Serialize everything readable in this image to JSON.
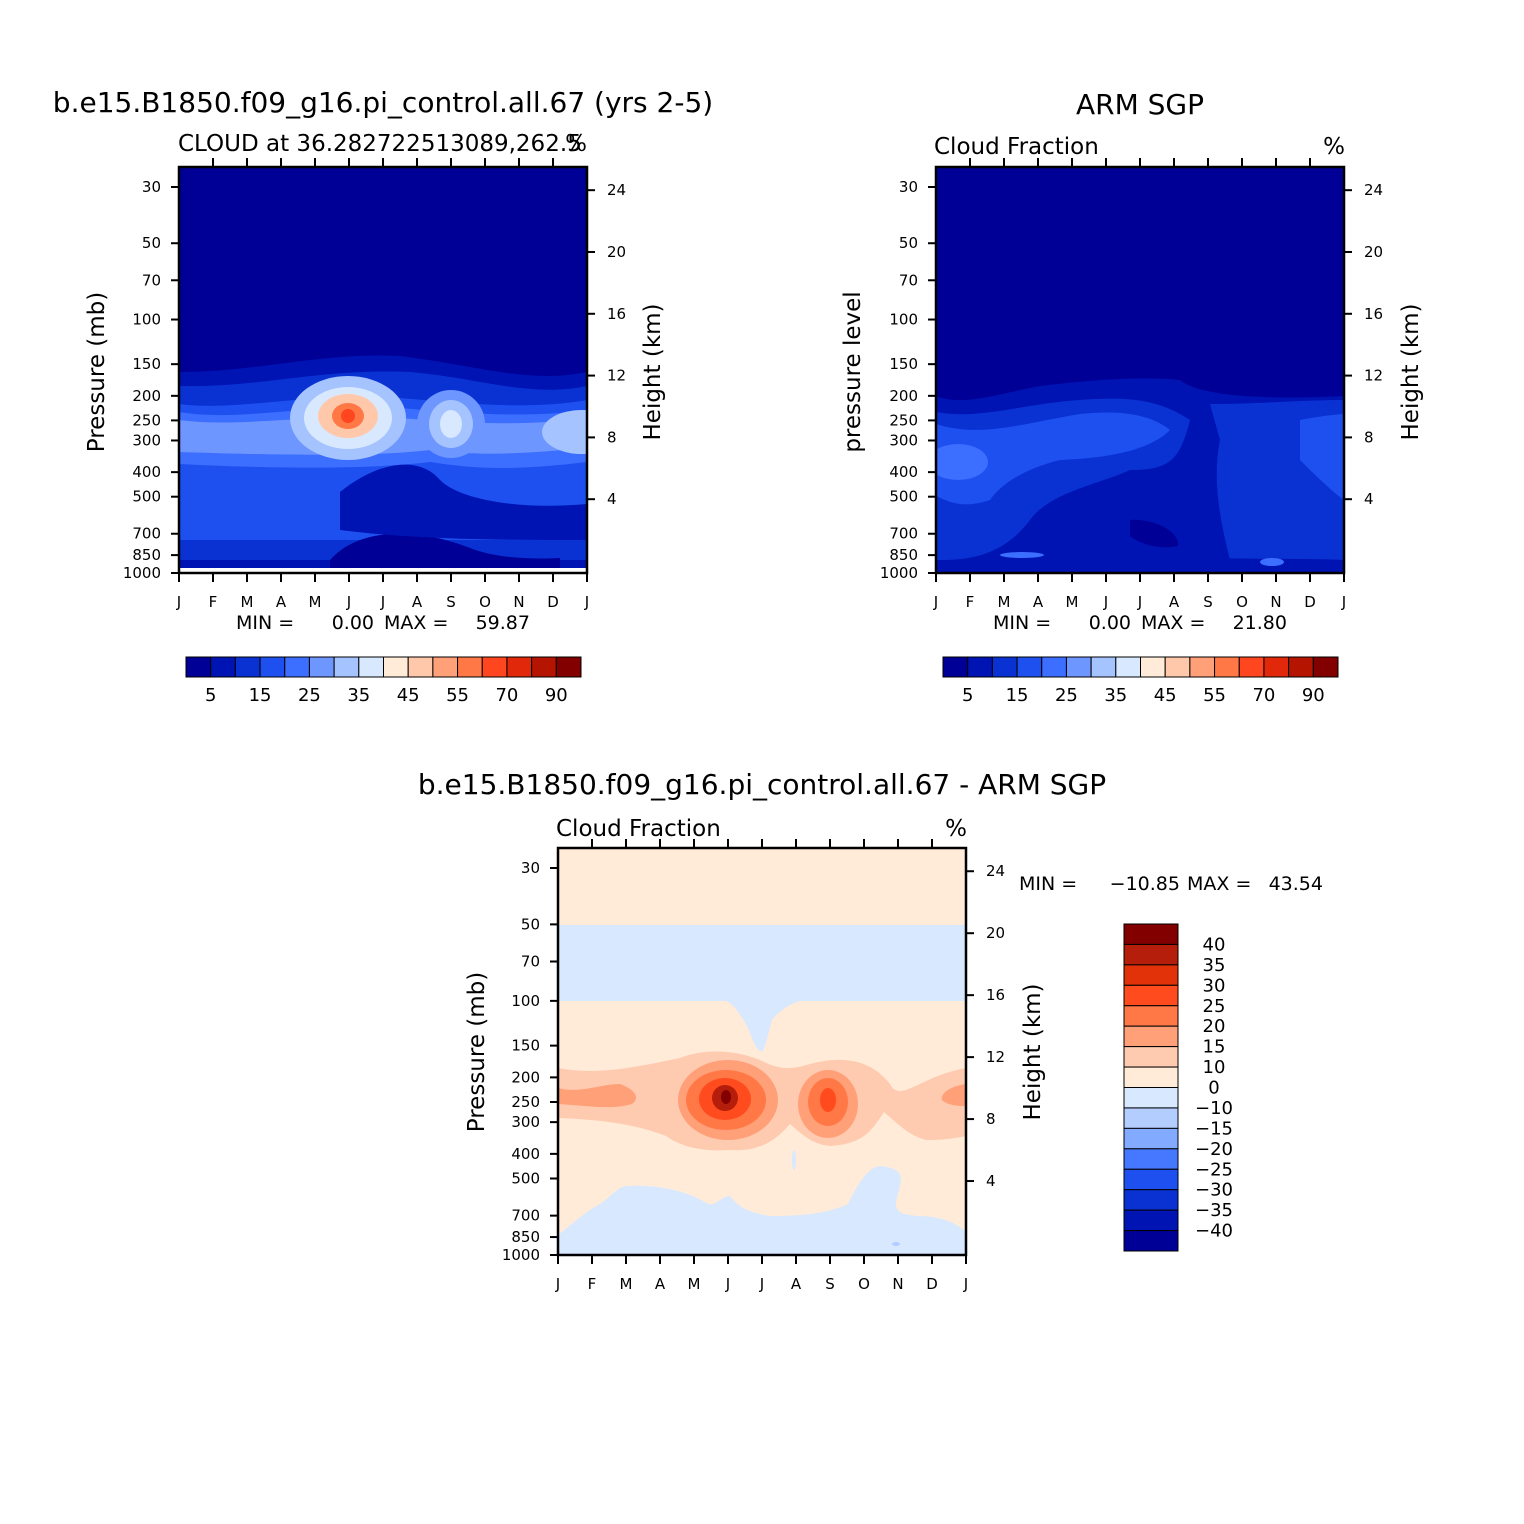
{
  "chart_data": [
    {
      "id": "p1",
      "type": "heatmap",
      "title": "b.e15.B1850.f09_g16.pi_control.all.67 (yrs 2-5)",
      "subtitle_left": "CLOUD at 36.282722513089,262.5",
      "subtitle_right": "%",
      "ylabel": "Pressure (mb)",
      "ylabel_right": "Height (km)",
      "xlabel": "",
      "x_ticks": [
        "J",
        "F",
        "M",
        "A",
        "M",
        "J",
        "J",
        "A",
        "S",
        "O",
        "N",
        "D",
        "J"
      ],
      "y_ticks": [
        "30",
        "50",
        "70",
        "100",
        "150",
        "200",
        "250",
        "300",
        "400",
        "500",
        "700",
        "850",
        "1000"
      ],
      "y_ticks_values": [
        30,
        50,
        70,
        100,
        150,
        200,
        250,
        300,
        400,
        500,
        700,
        850,
        1000
      ],
      "right_ticks": [
        "24",
        "20",
        "16",
        "12",
        "8",
        "4"
      ],
      "right_ticks_values": [
        24,
        20,
        16,
        12,
        8,
        4
      ],
      "stats": {
        "min_label": "MIN =",
        "min": "0.00",
        "max_label": "MAX =",
        "max": "59.87"
      },
      "colorbar_labels": [
        "5",
        "15",
        "25",
        "35",
        "45",
        "55",
        "70",
        "90"
      ],
      "features": [
        {
          "month": 5.0,
          "pressure": 250,
          "peak": 55
        },
        {
          "month": 7.7,
          "pressure": 260,
          "peak": 40
        }
      ]
    },
    {
      "id": "p2",
      "type": "heatmap",
      "title": "ARM SGP",
      "subtitle_left": "Cloud Fraction",
      "subtitle_right": "%",
      "ylabel": "pressure level",
      "ylabel_right": "Height (km)",
      "xlabel": "",
      "x_ticks": [
        "J",
        "F",
        "M",
        "A",
        "M",
        "J",
        "J",
        "A",
        "S",
        "O",
        "N",
        "D",
        "J"
      ],
      "y_ticks": [
        "30",
        "50",
        "70",
        "100",
        "150",
        "200",
        "250",
        "300",
        "400",
        "500",
        "700",
        "850",
        "1000"
      ],
      "y_ticks_values": [
        30,
        50,
        70,
        100,
        150,
        200,
        250,
        300,
        400,
        500,
        700,
        850,
        1000
      ],
      "right_ticks": [
        "24",
        "20",
        "16",
        "12",
        "8",
        "4"
      ],
      "right_ticks_values": [
        24,
        20,
        16,
        12,
        8,
        4
      ],
      "stats": {
        "min_label": "MIN =",
        "min": "0.00",
        "max_label": "MAX =",
        "max": "21.80"
      },
      "colorbar_labels": [
        "5",
        "15",
        "25",
        "35",
        "45",
        "55",
        "70",
        "90"
      ]
    },
    {
      "id": "p3",
      "type": "heatmap",
      "title": "b.e15.B1850.f09_g16.pi_control.all.67 - ARM SGP",
      "subtitle_left": "Cloud Fraction",
      "subtitle_right": "%",
      "ylabel": "Pressure (mb)",
      "ylabel_right": "Height (km)",
      "xlabel": "",
      "x_ticks": [
        "J",
        "F",
        "M",
        "A",
        "M",
        "J",
        "J",
        "A",
        "S",
        "O",
        "N",
        "D",
        "J"
      ],
      "y_ticks": [
        "30",
        "50",
        "70",
        "100",
        "150",
        "200",
        "250",
        "300",
        "400",
        "500",
        "700",
        "850",
        "1000"
      ],
      "y_ticks_values": [
        30,
        50,
        70,
        100,
        150,
        200,
        250,
        300,
        400,
        500,
        700,
        850,
        1000
      ],
      "right_ticks": [
        "24",
        "20",
        "16",
        "12",
        "8",
        "4"
      ],
      "right_ticks_values": [
        24,
        20,
        16,
        12,
        8,
        4
      ],
      "stats": {
        "min_label": "MIN =",
        "min": "−10.85",
        "max_label": "MAX =",
        "max": "43.54"
      },
      "colorbar_labels": [
        "40",
        "35",
        "30",
        "25",
        "20",
        "15",
        "10",
        "0",
        "−10",
        "−15",
        "−20",
        "−25",
        "−30",
        "−35",
        "−40"
      ],
      "features": [
        {
          "month": 5.0,
          "pressure": 250,
          "peak": 43
        },
        {
          "month": 8.0,
          "pressure": 260,
          "peak": 35
        }
      ]
    }
  ],
  "colors": {
    "cloud_scale": [
      "#000096",
      "#0014b4",
      "#0a32d2",
      "#1e50f0",
      "#3c6eff",
      "#6e96ff",
      "#a5c3ff",
      "#d7e8ff",
      "#ffebd7",
      "#ffc8aa",
      "#ffa078",
      "#ff7846",
      "#ff461e",
      "#e1280a",
      "#b41400",
      "#820000"
    ],
    "diff_scale": [
      "#820000",
      "#b41e0a",
      "#e1320a",
      "#ff4b1e",
      "#ff7846",
      "#ffa078",
      "#ffcbb0",
      "#ffebd7",
      "#d7e8ff",
      "#b4cdff",
      "#82aaff",
      "#4678ff",
      "#1e50f0",
      "#0a32d2",
      "#0014b4",
      "#000096"
    ]
  }
}
